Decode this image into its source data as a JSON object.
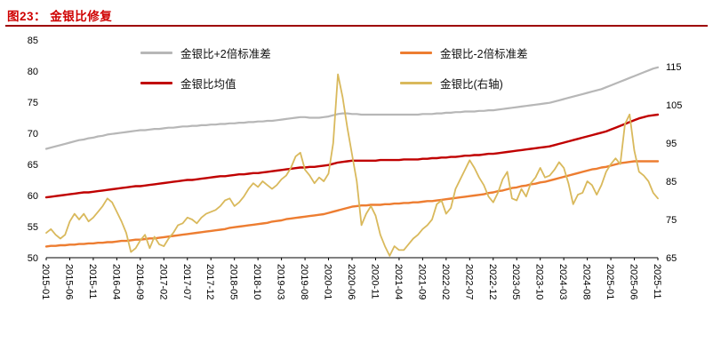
{
  "header": {
    "title": "图23：  金银比修复"
  },
  "colors": {
    "title_red": "#cf0000",
    "divider_red": "#9e0000",
    "gray": "#b7b7b7",
    "dark_red": "#c00000",
    "orange": "#ed7d31",
    "gold": "#d9b95c"
  },
  "legend": [
    {
      "label": "金银比+2倍标准差",
      "color": "#b7b7b7"
    },
    {
      "label": "金银比-2倍标准差",
      "color": "#ed7d31"
    },
    {
      "label": "金银比均值",
      "color": "#c00000"
    },
    {
      "label": "金银比(右轴)",
      "color": "#d9b95c"
    }
  ],
  "chart_data": {
    "type": "line",
    "title": "金银比修复",
    "x_start": "2015-01",
    "x_end": "2025-11",
    "x_tick_labels": [
      "2015-01",
      "2015-06",
      "2015-11",
      "2016-04",
      "2016-09",
      "2017-02",
      "2017-07",
      "2017-12",
      "2018-05",
      "2018-10",
      "2019-03",
      "2019-08",
      "2020-01",
      "2020-06",
      "2020-11",
      "2021-04",
      "2021-09",
      "2022-02",
      "2022-07",
      "2022-12",
      "2023-05",
      "2023-10",
      "2024-03",
      "2024-08",
      "2025-01",
      "2025-06",
      "2025-11"
    ],
    "left_axis": {
      "min": 50,
      "max": 85,
      "ticks": [
        50,
        55,
        60,
        65,
        70,
        75,
        80,
        85
      ]
    },
    "right_axis": {
      "min": 65,
      "max": 115,
      "ticks": [
        65,
        75,
        85,
        95,
        105,
        115
      ]
    },
    "grid": false,
    "legend_position": "top",
    "series": [
      {
        "name": "金银比+2倍标准差",
        "axis": "left",
        "color": "#b7b7b7",
        "width": 2.2,
        "values": [
          67.5,
          67.7,
          67.9,
          68.1,
          68.3,
          68.5,
          68.7,
          68.9,
          69.0,
          69.2,
          69.3,
          69.5,
          69.6,
          69.8,
          69.9,
          70.0,
          70.1,
          70.2,
          70.3,
          70.4,
          70.5,
          70.5,
          70.6,
          70.7,
          70.7,
          70.8,
          70.9,
          70.9,
          71.0,
          71.1,
          71.1,
          71.2,
          71.2,
          71.3,
          71.3,
          71.4,
          71.4,
          71.5,
          71.5,
          71.6,
          71.6,
          71.7,
          71.7,
          71.8,
          71.8,
          71.9,
          71.9,
          72.0,
          72.0,
          72.1,
          72.2,
          72.3,
          72.4,
          72.5,
          72.6,
          72.6,
          72.5,
          72.5,
          72.5,
          72.6,
          72.7,
          72.9,
          73.1,
          73.2,
          73.2,
          73.1,
          73.1,
          73.0,
          73.0,
          73.0,
          73.0,
          73.0,
          73.0,
          73.0,
          73.0,
          73.0,
          73.0,
          73.0,
          73.0,
          73.0,
          73.1,
          73.1,
          73.1,
          73.2,
          73.2,
          73.3,
          73.3,
          73.4,
          73.4,
          73.5,
          73.5,
          73.5,
          73.6,
          73.6,
          73.7,
          73.7,
          73.8,
          73.9,
          74.0,
          74.1,
          74.2,
          74.3,
          74.4,
          74.5,
          74.6,
          74.7,
          74.8,
          74.9,
          75.1,
          75.3,
          75.5,
          75.7,
          75.9,
          76.1,
          76.3,
          76.5,
          76.7,
          76.9,
          77.1,
          77.4,
          77.7,
          78.0,
          78.3,
          78.6,
          78.9,
          79.2,
          79.5,
          79.8,
          80.1,
          80.4,
          80.6
        ]
      },
      {
        "name": "金银比-2倍标准差",
        "axis": "left",
        "color": "#ed7d31",
        "width": 2.4,
        "values": [
          51.8,
          51.9,
          51.9,
          52.0,
          52.0,
          52.1,
          52.1,
          52.2,
          52.2,
          52.3,
          52.3,
          52.4,
          52.4,
          52.5,
          52.5,
          52.6,
          52.7,
          52.7,
          52.8,
          52.9,
          52.9,
          53.0,
          53.1,
          53.1,
          53.2,
          53.3,
          53.4,
          53.5,
          53.6,
          53.7,
          53.8,
          53.9,
          54.0,
          54.1,
          54.2,
          54.3,
          54.4,
          54.5,
          54.6,
          54.8,
          54.9,
          55.0,
          55.1,
          55.2,
          55.3,
          55.4,
          55.5,
          55.6,
          55.8,
          55.9,
          56.0,
          56.2,
          56.3,
          56.4,
          56.5,
          56.6,
          56.7,
          56.8,
          56.9,
          57.0,
          57.2,
          57.4,
          57.6,
          57.8,
          58.0,
          58.2,
          58.3,
          58.4,
          58.4,
          58.5,
          58.5,
          58.5,
          58.6,
          58.6,
          58.7,
          58.7,
          58.8,
          58.8,
          58.9,
          58.9,
          59.0,
          59.1,
          59.1,
          59.2,
          59.3,
          59.4,
          59.5,
          59.6,
          59.7,
          59.8,
          59.9,
          60.0,
          60.1,
          60.2,
          60.4,
          60.5,
          60.7,
          60.8,
          61.0,
          61.2,
          61.3,
          61.5,
          61.6,
          61.8,
          61.9,
          62.1,
          62.2,
          62.4,
          62.6,
          62.8,
          63.0,
          63.2,
          63.4,
          63.6,
          63.8,
          64.0,
          64.2,
          64.3,
          64.5,
          64.6,
          64.8,
          65.0,
          65.2,
          65.3,
          65.4,
          65.5,
          65.5,
          65.5,
          65.5,
          65.5,
          65.5
        ]
      },
      {
        "name": "金银比均值",
        "axis": "left",
        "color": "#c00000",
        "width": 2.4,
        "values": [
          59.7,
          59.8,
          59.9,
          60.0,
          60.1,
          60.2,
          60.3,
          60.4,
          60.5,
          60.5,
          60.6,
          60.7,
          60.8,
          60.9,
          61.0,
          61.1,
          61.2,
          61.3,
          61.4,
          61.5,
          61.5,
          61.6,
          61.7,
          61.8,
          61.9,
          62.0,
          62.1,
          62.2,
          62.3,
          62.4,
          62.5,
          62.5,
          62.6,
          62.7,
          62.8,
          62.9,
          63.0,
          63.1,
          63.1,
          63.2,
          63.3,
          63.4,
          63.4,
          63.5,
          63.6,
          63.6,
          63.7,
          63.8,
          63.9,
          64.0,
          64.1,
          64.2,
          64.3,
          64.4,
          64.5,
          64.5,
          64.6,
          64.6,
          64.7,
          64.8,
          64.9,
          65.1,
          65.3,
          65.4,
          65.5,
          65.6,
          65.6,
          65.6,
          65.6,
          65.6,
          65.6,
          65.7,
          65.7,
          65.7,
          65.7,
          65.7,
          65.8,
          65.8,
          65.8,
          65.8,
          65.9,
          65.9,
          66.0,
          66.0,
          66.1,
          66.1,
          66.2,
          66.2,
          66.3,
          66.4,
          66.4,
          66.5,
          66.5,
          66.6,
          66.7,
          66.7,
          66.8,
          66.9,
          67.0,
          67.1,
          67.2,
          67.3,
          67.4,
          67.5,
          67.6,
          67.7,
          67.8,
          67.9,
          68.1,
          68.3,
          68.5,
          68.7,
          68.9,
          69.1,
          69.3,
          69.5,
          69.7,
          69.9,
          70.1,
          70.3,
          70.6,
          70.9,
          71.2,
          71.5,
          71.8,
          72.1,
          72.4,
          72.6,
          72.8,
          72.9,
          73.0
        ]
      },
      {
        "name": "金银比(右轴)",
        "axis": "right",
        "color": "#d9b95c",
        "width": 1.8,
        "values": [
          71.5,
          72.5,
          71.0,
          70.0,
          71.0,
          74.5,
          76.5,
          75.0,
          76.5,
          74.5,
          75.5,
          77.0,
          78.5,
          80.5,
          79.5,
          77.0,
          74.5,
          71.5,
          66.5,
          67.5,
          69.5,
          71.0,
          67.5,
          70.5,
          68.5,
          68.0,
          70.0,
          71.5,
          73.5,
          74.0,
          75.5,
          75.0,
          74.0,
          75.5,
          76.5,
          77.0,
          77.5,
          78.5,
          80.0,
          80.5,
          78.5,
          79.5,
          81.0,
          83.0,
          84.5,
          83.5,
          85.0,
          84.0,
          83.0,
          84.0,
          85.5,
          86.5,
          88.5,
          91.5,
          92.5,
          88.0,
          86.5,
          84.5,
          86.0,
          85.0,
          87.0,
          95.0,
          113.0,
          107.0,
          99.0,
          92.0,
          85.0,
          73.5,
          76.5,
          78.5,
          76.0,
          71.0,
          68.0,
          65.5,
          68.0,
          67.0,
          67.0,
          68.5,
          70.0,
          71.0,
          72.5,
          73.5,
          75.0,
          79.0,
          80.0,
          76.5,
          78.0,
          83.0,
          85.5,
          88.0,
          90.5,
          88.5,
          86.0,
          84.0,
          81.0,
          79.5,
          82.0,
          85.5,
          87.5,
          80.5,
          80.0,
          83.0,
          81.0,
          84.5,
          86.0,
          88.5,
          86.0,
          86.5,
          88.0,
          90.0,
          88.5,
          84.5,
          79.0,
          81.5,
          82.0,
          85.0,
          84.0,
          81.5,
          84.0,
          87.5,
          89.5,
          91.0,
          89.5,
          100.0,
          102.5,
          93.0,
          87.5,
          86.5,
          85.0,
          82.0,
          80.5
        ]
      }
    ]
  }
}
